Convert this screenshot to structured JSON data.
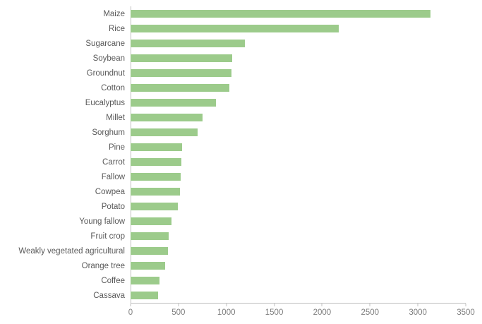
{
  "chart_data": {
    "type": "bar",
    "orientation": "horizontal",
    "title": "",
    "xlabel": "",
    "ylabel": "",
    "categories": [
      "Maize",
      "Rice",
      "Sugarcane",
      "Soybean",
      "Groundnut",
      "Cotton",
      "Eucalyptus",
      "Millet",
      "Sorghum",
      "Pine",
      "Carrot",
      "Fallow",
      "Cowpea",
      "Potato",
      "Young fallow",
      "Fruit crop",
      "Weakly vegetated agricultural",
      "Orange tree",
      "Coffee",
      "Cassava"
    ],
    "values": [
      3130,
      2170,
      1190,
      1060,
      1050,
      1030,
      890,
      750,
      700,
      540,
      530,
      520,
      515,
      490,
      430,
      400,
      390,
      360,
      300,
      290
    ],
    "xlim": [
      0,
      3500
    ],
    "xticks": [
      0,
      500,
      1000,
      1500,
      2000,
      2500,
      3000,
      3500
    ],
    "bar_color": "#9CCB8B",
    "axis_color": "#BFBFBF",
    "label_color": "#595959",
    "tick_label_color": "#808080",
    "grid": false,
    "legend": false,
    "background": "#FFFFFF"
  }
}
